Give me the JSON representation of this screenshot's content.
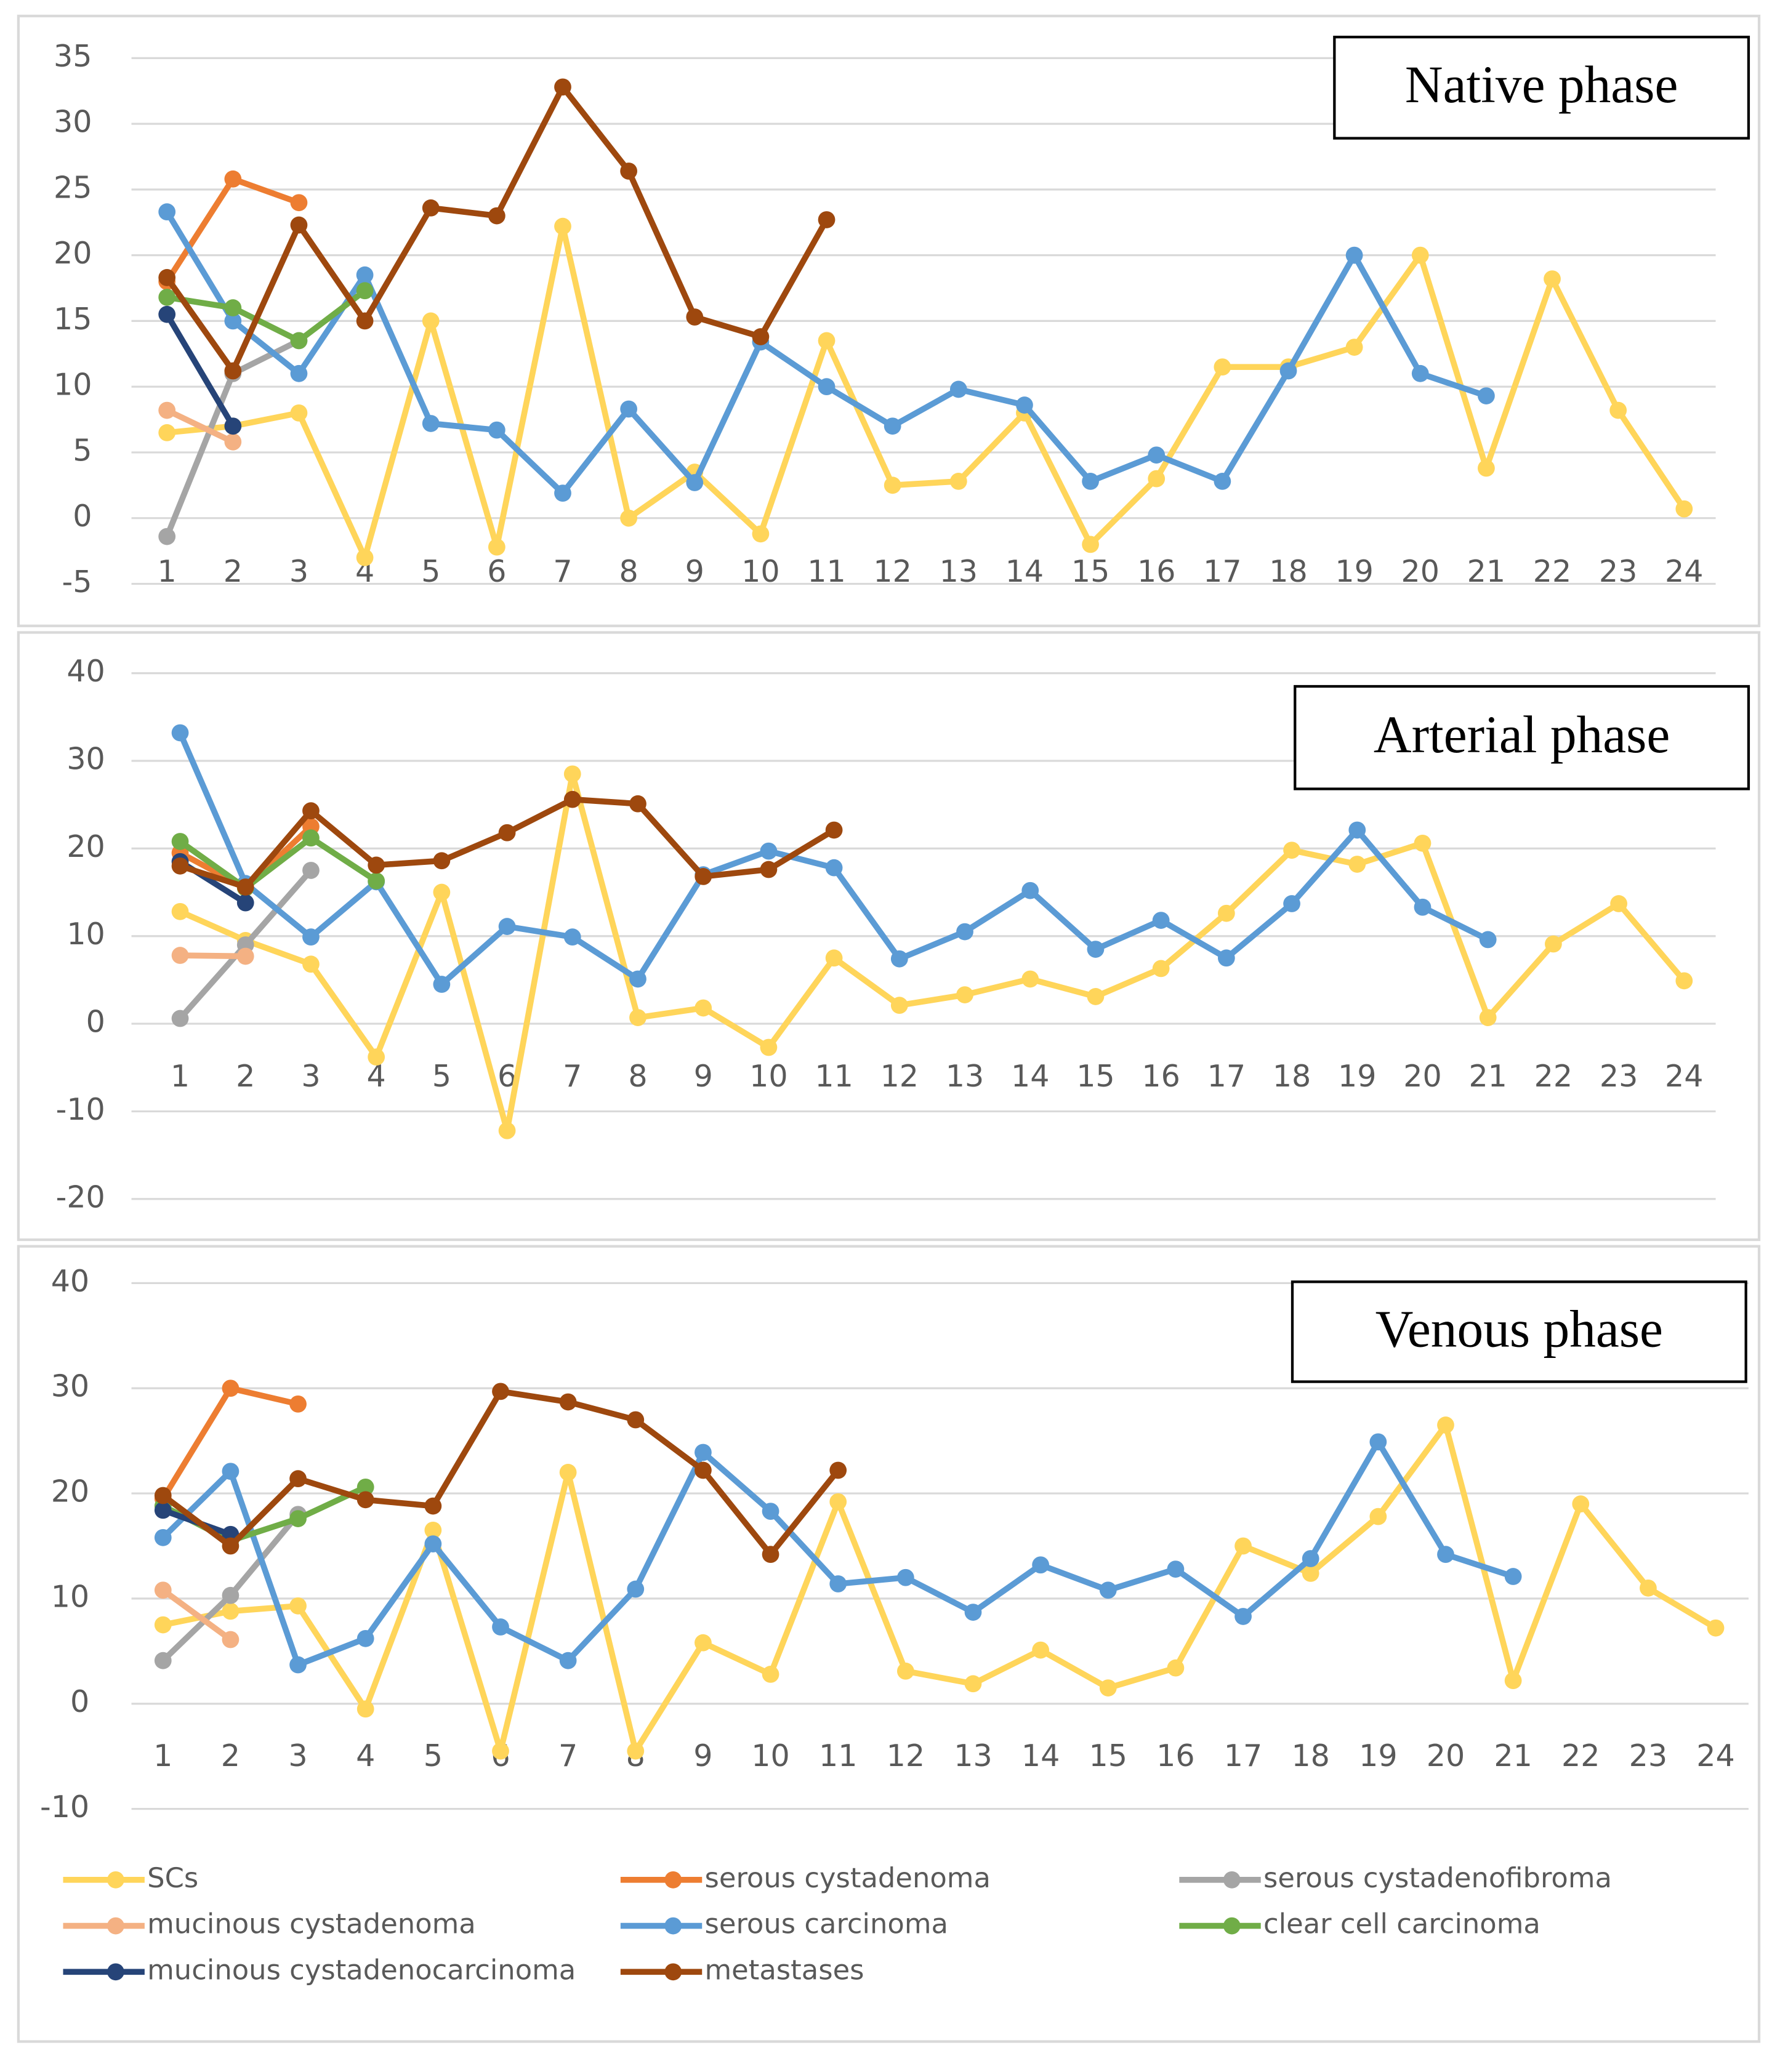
{
  "chart_data": [
    {
      "type": "line",
      "title": "Native phase",
      "x": [
        1,
        2,
        3,
        4,
        5,
        6,
        7,
        8,
        9,
        10,
        11,
        12,
        13,
        14,
        15,
        16,
        17,
        18,
        19,
        20,
        21,
        22,
        23,
        24
      ],
      "ylim": [
        -5,
        35
      ],
      "yticks": [
        -5,
        0,
        5,
        10,
        15,
        20,
        25,
        30,
        35
      ],
      "grid": true,
      "series": [
        {
          "name": "SCs",
          "color": "#ffd55a",
          "values": [
            6.5,
            7,
            8,
            -3,
            15,
            -2.2,
            22.2,
            0,
            3.5,
            -1.2,
            13.5,
            2.5,
            2.8,
            8,
            -2,
            3,
            11.5,
            11.5,
            13,
            20,
            3.8,
            18.2,
            8.2,
            0.7
          ]
        },
        {
          "name": "serous cystadenoma",
          "color": "#ed7d31",
          "values": [
            18,
            25.8,
            24,
            null,
            null,
            null,
            null,
            null,
            null,
            null,
            null,
            null,
            null,
            null,
            null,
            null,
            null,
            null,
            null,
            null,
            null,
            null,
            null,
            null
          ]
        },
        {
          "name": "serous cystadenofibroma",
          "color": "#a5a5a5",
          "values": [
            -1.4,
            11,
            13.5,
            null,
            null,
            null,
            null,
            null,
            null,
            null,
            null,
            null,
            null,
            null,
            null,
            null,
            null,
            null,
            null,
            null,
            null,
            null,
            null,
            null
          ]
        },
        {
          "name": "mucinous cystadenoma",
          "color": "#f4b183",
          "values": [
            8.2,
            5.8,
            null,
            null,
            null,
            null,
            null,
            null,
            null,
            null,
            null,
            null,
            null,
            null,
            null,
            null,
            null,
            null,
            null,
            null,
            null,
            null,
            null,
            null
          ]
        },
        {
          "name": "serous carcinoma",
          "color": "#5b9bd5",
          "values": [
            23.3,
            15,
            11,
            18.5,
            7.2,
            6.7,
            1.9,
            8.3,
            2.7,
            13.4,
            10,
            7,
            9.8,
            8.6,
            2.8,
            4.8,
            2.8,
            11.2,
            20,
            11,
            9.3,
            null,
            null,
            null
          ]
        },
        {
          "name": "clear cell carcinoma",
          "color": "#70ad47",
          "values": [
            16.8,
            16,
            13.5,
            17.3,
            null,
            null,
            null,
            null,
            null,
            null,
            null,
            null,
            null,
            null,
            null,
            null,
            null,
            null,
            null,
            null,
            null,
            null,
            null,
            null
          ]
        },
        {
          "name": "mucinous cystadenocarcinoma",
          "color": "#264478",
          "values": [
            15.5,
            7,
            null,
            null,
            null,
            null,
            null,
            null,
            null,
            null,
            null,
            null,
            null,
            null,
            null,
            null,
            null,
            null,
            null,
            null,
            null,
            null,
            null,
            null
          ]
        },
        {
          "name": "metastases",
          "color": "#9e480e",
          "values": [
            18.3,
            11.2,
            22.3,
            15,
            23.6,
            23,
            32.8,
            26.4,
            15.3,
            13.8,
            22.7,
            null,
            null,
            null,
            null,
            null,
            null,
            null,
            null,
            null,
            null,
            null,
            null,
            null
          ]
        }
      ]
    },
    {
      "type": "line",
      "title": "Arterial phase",
      "x": [
        1,
        2,
        3,
        4,
        5,
        6,
        7,
        8,
        9,
        10,
        11,
        12,
        13,
        14,
        15,
        16,
        17,
        18,
        19,
        20,
        21,
        22,
        23,
        24
      ],
      "ylim": [
        -20,
        40
      ],
      "yticks": [
        -20,
        -10,
        0,
        10,
        20,
        30,
        40
      ],
      "grid": true,
      "series": [
        {
          "name": "SCs",
          "color": "#ffd55a",
          "values": [
            12.8,
            9.5,
            6.8,
            -3.8,
            15,
            -12.2,
            28.5,
            0.7,
            1.8,
            -2.7,
            7.5,
            2.1,
            3.3,
            5.1,
            3.1,
            6.3,
            12.6,
            19.8,
            18.2,
            20.6,
            0.7,
            9.1,
            13.7,
            4.9
          ]
        },
        {
          "name": "serous cystadenoma",
          "color": "#ed7d31",
          "values": [
            19.5,
            15.5,
            22.5,
            null,
            null,
            null,
            null,
            null,
            null,
            null,
            null,
            null,
            null,
            null,
            null,
            null,
            null,
            null,
            null,
            null,
            null,
            null,
            null,
            null
          ]
        },
        {
          "name": "serous cystadenofibroma",
          "color": "#a5a5a5",
          "values": [
            0.6,
            9,
            17.5,
            null,
            null,
            null,
            null,
            null,
            null,
            null,
            null,
            null,
            null,
            null,
            null,
            null,
            null,
            null,
            null,
            null,
            null,
            null,
            null,
            null
          ]
        },
        {
          "name": "mucinous cystadenoma",
          "color": "#f4b183",
          "values": [
            7.8,
            7.7,
            null,
            null,
            null,
            null,
            null,
            null,
            null,
            null,
            null,
            null,
            null,
            null,
            null,
            null,
            null,
            null,
            null,
            null,
            null,
            null,
            null,
            null
          ]
        },
        {
          "name": "serous carcinoma",
          "color": "#5b9bd5",
          "values": [
            33.2,
            16,
            9.9,
            16.2,
            4.5,
            11.1,
            9.9,
            5.1,
            17,
            19.7,
            17.8,
            7.4,
            10.5,
            15.2,
            8.5,
            11.8,
            7.5,
            13.7,
            22.1,
            13.3,
            9.6,
            null,
            null,
            null
          ]
        },
        {
          "name": "clear cell carcinoma",
          "color": "#70ad47",
          "values": [
            20.8,
            15.5,
            21.2,
            16.3,
            null,
            null,
            null,
            null,
            null,
            null,
            null,
            null,
            null,
            null,
            null,
            null,
            null,
            null,
            null,
            null,
            null,
            null,
            null,
            null
          ]
        },
        {
          "name": "mucinous cystadenocarcinoma",
          "color": "#264478",
          "values": [
            18.5,
            13.8,
            null,
            null,
            null,
            null,
            null,
            null,
            null,
            null,
            null,
            null,
            null,
            null,
            null,
            null,
            null,
            null,
            null,
            null,
            null,
            null,
            null,
            null
          ]
        },
        {
          "name": "metastases",
          "color": "#9e480e",
          "values": [
            18,
            15.6,
            24.3,
            18.1,
            18.6,
            21.8,
            25.6,
            25.1,
            16.8,
            17.6,
            22.1,
            null,
            null,
            null,
            null,
            null,
            null,
            null,
            null,
            null,
            null,
            null,
            null,
            null
          ]
        }
      ]
    },
    {
      "type": "line",
      "title": "Venous phase",
      "x": [
        1,
        2,
        3,
        4,
        5,
        6,
        7,
        8,
        9,
        10,
        11,
        12,
        13,
        14,
        15,
        16,
        17,
        18,
        19,
        20,
        21,
        22,
        23,
        24
      ],
      "ylim": [
        -10,
        40
      ],
      "yticks": [
        -10,
        0,
        10,
        20,
        30,
        40
      ],
      "grid": true,
      "series": [
        {
          "name": "SCs",
          "color": "#ffd55a",
          "values": [
            7.5,
            8.8,
            9.3,
            -0.5,
            16.5,
            -4.5,
            22,
            -4.5,
            5.8,
            2.8,
            19.2,
            3.1,
            1.9,
            5.1,
            1.5,
            3.4,
            15,
            12.4,
            17.8,
            26.5,
            2.2,
            19,
            11,
            7.2
          ]
        },
        {
          "name": "serous cystadenoma",
          "color": "#ed7d31",
          "values": [
            19.5,
            30,
            28.5,
            null,
            null,
            null,
            null,
            null,
            null,
            null,
            null,
            null,
            null,
            null,
            null,
            null,
            null,
            null,
            null,
            null,
            null,
            null,
            null,
            null
          ]
        },
        {
          "name": "serous cystadenofibroma",
          "color": "#a5a5a5",
          "values": [
            4.1,
            10.3,
            18,
            null,
            null,
            null,
            null,
            null,
            null,
            null,
            null,
            null,
            null,
            null,
            null,
            null,
            null,
            null,
            null,
            null,
            null,
            null,
            null,
            null
          ]
        },
        {
          "name": "mucinous cystadenoma",
          "color": "#f4b183",
          "values": [
            10.8,
            6.1,
            null,
            null,
            null,
            null,
            null,
            null,
            null,
            null,
            null,
            null,
            null,
            null,
            null,
            null,
            null,
            null,
            null,
            null,
            null,
            null,
            null,
            null
          ]
        },
        {
          "name": "serous carcinoma",
          "color": "#5b9bd5",
          "values": [
            15.8,
            22.1,
            3.7,
            6.2,
            15.2,
            7.3,
            4.1,
            10.9,
            23.9,
            18.3,
            11.4,
            12,
            8.7,
            13.2,
            10.8,
            12.8,
            8.3,
            13.8,
            24.9,
            14.2,
            12.1,
            null,
            null,
            null
          ]
        },
        {
          "name": "clear cell carcinoma",
          "color": "#70ad47",
          "values": [
            18.8,
            15.5,
            17.6,
            20.6,
            null,
            null,
            null,
            null,
            null,
            null,
            null,
            null,
            null,
            null,
            null,
            null,
            null,
            null,
            null,
            null,
            null,
            null,
            null,
            null
          ]
        },
        {
          "name": "mucinous cystadenocarcinoma",
          "color": "#264478",
          "values": [
            18.4,
            16.1,
            null,
            null,
            null,
            null,
            null,
            null,
            null,
            null,
            null,
            null,
            null,
            null,
            null,
            null,
            null,
            null,
            null,
            null,
            null,
            null,
            null,
            null
          ]
        },
        {
          "name": "metastases",
          "color": "#9e480e",
          "values": [
            19.8,
            15,
            21.4,
            19.4,
            18.8,
            29.7,
            28.7,
            27,
            22.2,
            14.2,
            22.2,
            null,
            null,
            null,
            null,
            null,
            null,
            null,
            null,
            null,
            null,
            null,
            null,
            null
          ]
        }
      ]
    }
  ]
}
